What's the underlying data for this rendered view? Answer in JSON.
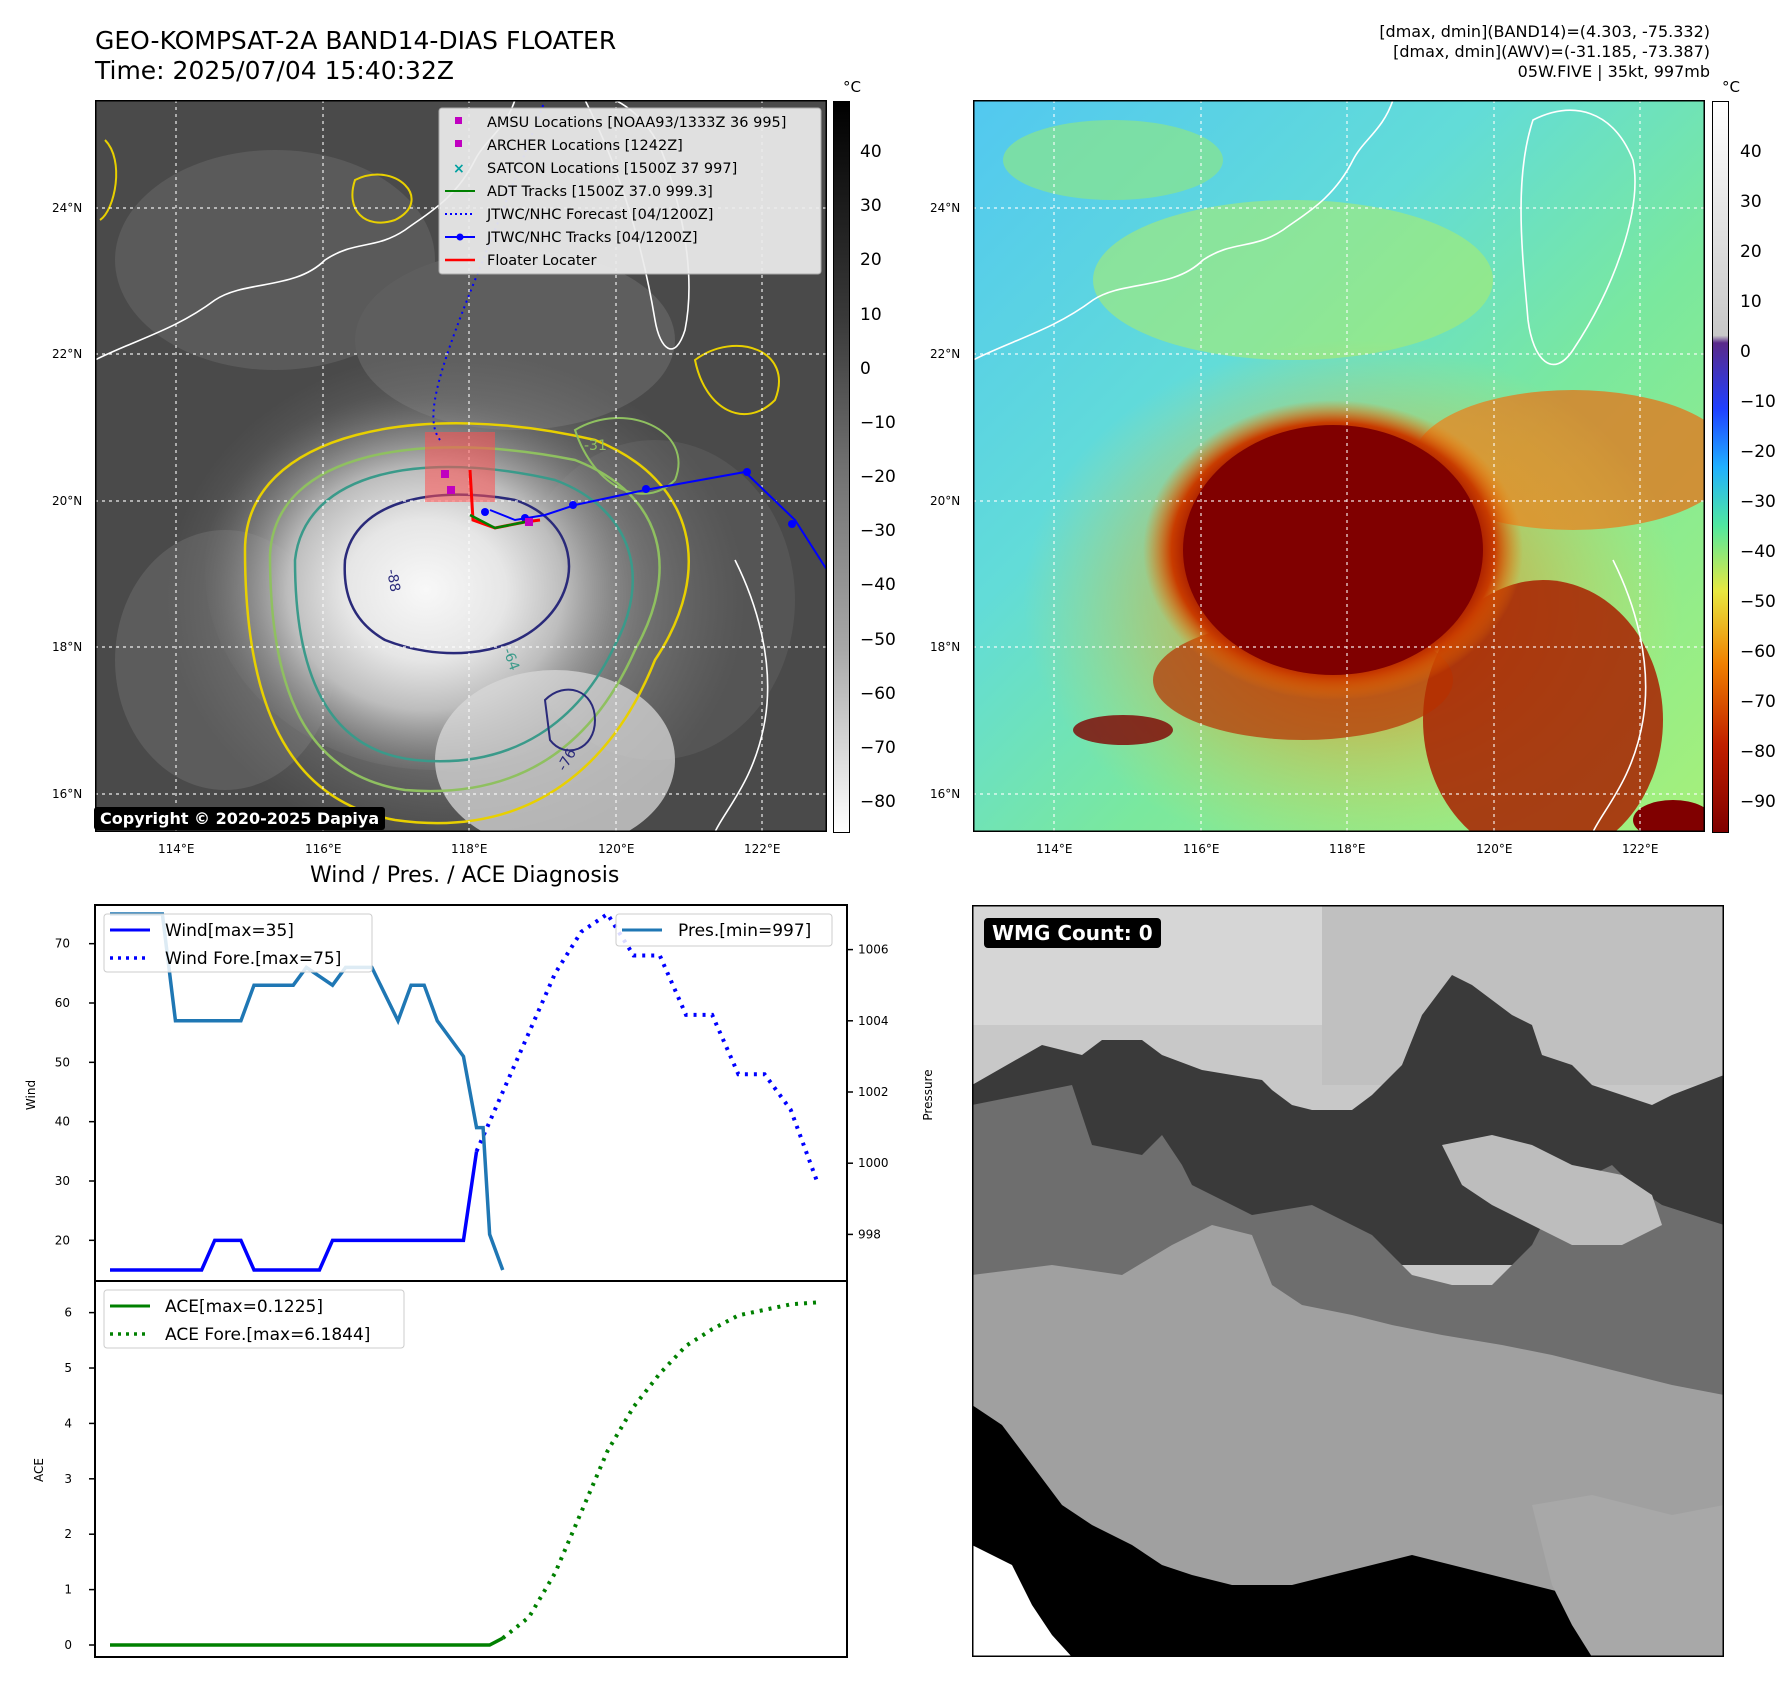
{
  "header": {
    "title_line1": "GEO-KOMPSAT-2A BAND14-DIAS FLOATER",
    "title_line2": "Time: 2025/07/04 15:40:32Z",
    "stats_line1": "[dmax, dmin](BAND14)=(4.303, -75.332)",
    "stats_line2": "[dmax, dmin](AWV)=(-31.185, -73.387)",
    "stats_line3": "05W.FIVE | 35kt, 997mb"
  },
  "map_axes": {
    "lon_labels": [
      "114°E",
      "116°E",
      "118°E",
      "120°E",
      "122°E"
    ],
    "lat_labels": [
      "24°N",
      "22°N",
      "20°N",
      "18°N",
      "16°N"
    ],
    "lon_range": [
      112.9,
      122.9
    ],
    "lat_range": [
      15.5,
      25.5
    ]
  },
  "ir_panel": {
    "colorbar_unit": "°C",
    "colorbar_ticks": [
      "40",
      "30",
      "20",
      "10",
      "0",
      "−10",
      "−20",
      "−30",
      "−40",
      "−50",
      "−60",
      "−70",
      "−80"
    ],
    "contour_labels": [
      "-31",
      "-64",
      "-76",
      "-88"
    ],
    "copyright": "Copyright © 2020-2025 Dapiya",
    "legend": [
      {
        "label": "AMSU Locations [NOAA93/1333Z 36 995]",
        "color": "#c000c0",
        "marker": "square"
      },
      {
        "label": "ARCHER Locations [1242Z]",
        "color": "#c000c0",
        "marker": "square"
      },
      {
        "label": "SATCON Locations [1500Z 37 997]",
        "color": "#00a0a0",
        "marker": "x"
      },
      {
        "label": "ADT Tracks [1500Z 37.0 999.3]",
        "color": "#008000",
        "marker": "line"
      },
      {
        "label": "JTWC/NHC Forecast [04/1200Z]",
        "color": "#0000ff",
        "marker": "dotted"
      },
      {
        "label": "JTWC/NHC Tracks [04/1200Z]",
        "color": "#0000ff",
        "marker": "dotline"
      },
      {
        "label": "Floater Locater",
        "color": "#ff0000",
        "marker": "line"
      }
    ]
  },
  "awv_panel": {
    "colorbar_unit": "°C",
    "colorbar_ticks": [
      "40",
      "30",
      "20",
      "10",
      "0",
      "−10",
      "−20",
      "−30",
      "−40",
      "−50",
      "−60",
      "−70",
      "−80",
      "−90"
    ]
  },
  "diagnosis": {
    "section_title": "Wind / Pres. / ACE Diagnosis",
    "wind_axis_label": "Wind",
    "pressure_axis_label": "Pressure",
    "ace_axis_label": "ACE",
    "wind_ticks": [
      "70",
      "60",
      "50",
      "40",
      "30",
      "20"
    ],
    "pressure_ticks": [
      "1006",
      "1004",
      "1002",
      "1000",
      "998"
    ],
    "ace_ticks": [
      "6",
      "5",
      "4",
      "3",
      "2",
      "1",
      "0"
    ],
    "legend_wind": "Wind[max=35]",
    "legend_wind_fore": "Wind Fore.[max=75]",
    "legend_pres": "Pres.[min=997]",
    "legend_ace": "ACE[max=0.1225]",
    "legend_ace_fore": "ACE Fore.[max=6.1844]"
  },
  "wmg_panel": {
    "label": "WMG Count: 0"
  },
  "chart_data": [
    {
      "type": "line",
      "panel": "wind-pressure",
      "x": [
        0,
        1,
        2,
        3,
        4,
        5,
        6,
        7,
        8,
        9,
        10,
        11,
        12,
        13,
        14,
        15,
        16,
        17,
        18,
        19,
        20,
        21,
        22,
        23,
        24,
        25,
        26,
        27,
        28,
        29,
        30,
        31,
        32,
        33,
        34,
        35,
        36,
        37,
        38,
        39,
        40,
        41,
        42,
        43,
        44,
        45,
        46,
        47,
        48,
        49,
        50,
        51,
        52,
        53,
        54,
        55
      ],
      "series": [
        {
          "name": "Wind[max=35]",
          "axis": "left",
          "color": "#0000ff",
          "style": "solid",
          "x": [
            0,
            7,
            8,
            10,
            11,
            16,
            17,
            27,
            28
          ],
          "values": [
            15,
            15,
            20,
            20,
            15,
            15,
            20,
            20,
            35
          ]
        },
        {
          "name": "Wind Fore.[max=75]",
          "axis": "left",
          "color": "#0000ff",
          "style": "dotted",
          "x": [
            28,
            30,
            32,
            34,
            36,
            38,
            40,
            42,
            44,
            46,
            48,
            50,
            52,
            54
          ],
          "values": [
            35,
            45,
            55,
            65,
            72,
            75,
            68,
            68,
            58,
            58,
            48,
            48,
            42,
            30
          ]
        },
        {
          "name": "Pres.[min=997]",
          "axis": "right",
          "color": "#1f77b4",
          "style": "solid",
          "x": [
            0,
            4,
            5,
            10,
            11,
            14,
            15,
            17,
            18,
            19,
            20,
            22,
            23,
            24,
            25,
            27,
            28,
            28.5,
            29,
            30
          ],
          "values": [
            1007,
            1007,
            1004,
            1004,
            1005,
            1005,
            1005.5,
            1005,
            1005.5,
            1005.5,
            1005.5,
            1004,
            1005,
            1005,
            1004,
            1003,
            1001,
            1001,
            998,
            997
          ]
        }
      ],
      "ylim_left": [
        15,
        75
      ],
      "ylim_right": [
        997,
        1007
      ]
    },
    {
      "type": "line",
      "panel": "ace",
      "series": [
        {
          "name": "ACE[max=0.1225]",
          "color": "#008000",
          "style": "solid",
          "x": [
            0,
            29,
            30
          ],
          "values": [
            0,
            0,
            0.1225
          ]
        },
        {
          "name": "ACE Fore.[max=6.1844]",
          "color": "#008000",
          "style": "dotted",
          "x": [
            30,
            32,
            34,
            36,
            38,
            40,
            42,
            44,
            46,
            48,
            50,
            52,
            54
          ],
          "values": [
            0.1225,
            0.5,
            1.3,
            2.4,
            3.5,
            4.3,
            4.9,
            5.4,
            5.7,
            5.95,
            6.05,
            6.15,
            6.1844
          ]
        }
      ],
      "ylim": [
        0,
        6.3
      ]
    }
  ]
}
